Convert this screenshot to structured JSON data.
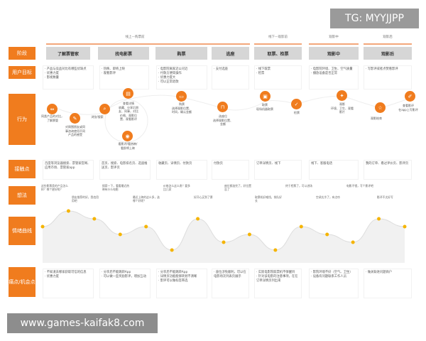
{
  "watermark_top": "TG: MYYJJPP",
  "watermark_bottom": "www.games-kaifak8.com",
  "accent": "#f07c1e",
  "phases": [
    "线上—购票前",
    "线下—观影前",
    "观影中",
    "观影后"
  ],
  "row_labels": [
    "阶段",
    "用户目标",
    "行为",
    "接触点",
    "想法",
    "情绪曲线",
    "痛点/机会点"
  ],
  "stages": [
    "了解票管家",
    "找电影票",
    "购票",
    "选座",
    "取票、检票",
    "观影中",
    "观影后"
  ],
  "goals": [
    "· 产品与竞品对比有哪些优缺点\n· 优惠力度\n· 影视数量",
    "· 热映、即将上映\n· 观看影评",
    "· 电影院离家近公司近\n· 付款方便简操作\n· 优惠力度大\n· 可以正常退款",
    "· 支付选座",
    "· 线下取票\n· 检票",
    "· 电影院环境、卫生、空气质量\n· 播放设备是否正常",
    "· 写影评或者点赞看影评"
  ],
  "behaviors": [
    {
      "icon": "compare",
      "text": "同类产品的对比，\n了解票管"
    },
    {
      "icon": "pencil",
      "text": "对周围朋友或同\n事咨询使用不同\n产品的感受"
    },
    {
      "icon": "search",
      "text": "浏览/搜索"
    },
    {
      "icon": "document",
      "text": "查看详情\n收藏、分享后朋\n友、同事，对比\n价格、观影位\n置、观看影评"
    },
    {
      "icon": "eye",
      "text": "看影评/看热映/\n看即将上映"
    },
    {
      "icon": "ticket",
      "text": "购票\n选择观影位置、\n时间，确认金额"
    },
    {
      "icon": "seat",
      "text": "选座位\n选择观影位置、\n金额"
    },
    {
      "icon": "box",
      "text": "取票\n现场机器取票"
    },
    {
      "icon": "check",
      "text": "检票"
    },
    {
      "icon": "film",
      "text": "观影\n环境、卫生、观看\n影片"
    },
    {
      "icon": "star",
      "text": "观影结束"
    },
    {
      "icon": "edit",
      "text": "查看影评\n在app上写影评"
    }
  ],
  "touchpoints": [
    "百度等浏览器搜索、票管家官网、应用市场、票管家app",
    "首页、搜索、电影排名页、选座推送页、影评页",
    "收藏页、详情页、付款页",
    "付款页",
    "订单详情页、线下",
    "线下、客服电话",
    "我的订单、看过评价页、影评页"
  ],
  "thoughts": [
    "这些影票类的产品怎么样？哪个更好呢？",
    "朋友推荐的好，我也用用吧",
    "搜索一下，看看最近热映有什么电影",
    "最近上映的这么多，选哪个好呢？",
    "价格怎么这么贵？要多比几家",
    "好开心买到了票",
    "座位都选完了，好位置没了",
    "取票机好难找，排队好长",
    "终于检票了，可以进场",
    "空调太冷了，有点吵",
    "电影不错，写个影评吧",
    "影评不太好写"
  ],
  "emotion_scores": [
    1,
    3,
    2,
    0,
    1,
    -2,
    2,
    -1,
    0,
    -2,
    1,
    0,
    -1,
    2,
    1
  ],
  "pains": [
    "· 不知道去哪家获取可信的信息\n· 优惠力度",
    "· 分享后不能跳转App\n· 可以做一些奖励影评，增加互动",
    "· 分享后不能跳转App\n· 详情页功能能够转划不清晰\n· 影评可以做标签筛选",
    "· 座位涉免顺利，可以在电影场次列表页展示",
    "· 实际电影院取票机不够醒目\n· 针对该电影的注意事项，在在订单详情页列出来",
    "· 影院环境不好（空气、卫生）\n· 设备有问题联系工作人员",
    "· 做关联进问题商户"
  ]
}
